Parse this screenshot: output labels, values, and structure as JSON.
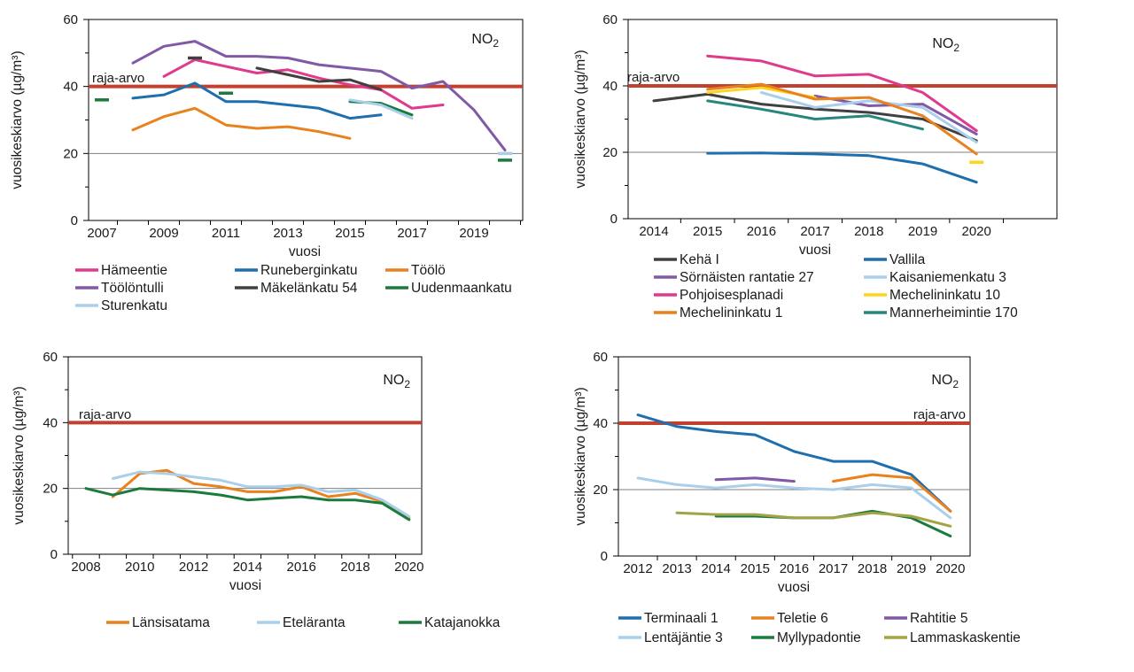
{
  "page": {
    "background": "#ffffff",
    "text_color": "#1a1a1a"
  },
  "shared": {
    "ylabel": "vuosikeskiarvo (µg/m³)",
    "xlabel": "vuosi",
    "gas_label": {
      "main": "NO",
      "sub": "2"
    },
    "limit_label": "raja-arvo",
    "limit_value": 40,
    "limit_color": "#C2402F",
    "gridline_color": "#7F7F7F",
    "axis_color": "#000000"
  },
  "chart_data": [
    {
      "position": "top-left",
      "type": "line",
      "title": "NO2 vuosikeskiarvo",
      "xlabel": "vuosi",
      "ylabel": "vuosikeskiarvo (µg/m³)",
      "ylim": [
        0,
        60
      ],
      "yticks": [
        0,
        20,
        40,
        60
      ],
      "xticks": [
        2007,
        2009,
        2011,
        2013,
        2015,
        2017,
        2019
      ],
      "gridline_at": 20,
      "limit_line": {
        "label": "raja-arvo",
        "value": 40
      },
      "legend_position": "bottom",
      "series": [
        {
          "name": "Hämeentie",
          "color": "#E03A8C",
          "points": [
            [
              2009,
              43
            ],
            [
              2010,
              48
            ],
            [
              2011,
              46
            ],
            [
              2012,
              44
            ],
            [
              2013,
              45
            ],
            [
              2014,
              42.5
            ],
            [
              2015,
              40.5
            ],
            [
              2016,
              39
            ],
            [
              2017,
              33.5
            ],
            [
              2018,
              34.5
            ]
          ]
        },
        {
          "name": "Runeberginkatu",
          "color": "#1F6FAD",
          "points": [
            [
              2008,
              36.5
            ],
            [
              2009,
              37.5
            ],
            [
              2010,
              41
            ],
            [
              2011,
              35.5
            ],
            [
              2012,
              35.5
            ],
            [
              2013,
              34.5
            ],
            [
              2014,
              33.5
            ],
            [
              2015,
              30.5
            ],
            [
              2016,
              31.5
            ]
          ]
        },
        {
          "name": "Töölö",
          "color": "#E8821E",
          "points": [
            [
              2008,
              27
            ],
            [
              2009,
              31
            ],
            [
              2010,
              33.5
            ],
            [
              2011,
              28.5
            ],
            [
              2012,
              27.5
            ],
            [
              2013,
              28
            ],
            [
              2014,
              26.5
            ],
            [
              2015,
              24.5
            ]
          ]
        },
        {
          "name": "Töölöntulli",
          "color": "#8159A6",
          "points": [
            [
              2008,
              47
            ],
            [
              2009,
              52
            ],
            [
              2010,
              53.5
            ],
            [
              2011,
              49
            ],
            [
              2012,
              49
            ],
            [
              2013,
              48.5
            ],
            [
              2014,
              46.5
            ],
            [
              2015,
              45.5
            ],
            [
              2016,
              44.5
            ],
            [
              2017,
              39.5
            ],
            [
              2018,
              41.5
            ],
            [
              2019,
              33
            ],
            [
              2020,
              21
            ]
          ]
        },
        {
          "name": "Mäkelänkatu 54",
          "color": "#404040",
          "points": [
            [
              2012,
              45.5
            ],
            [
              2013,
              43.5
            ],
            [
              2014,
              41.5
            ],
            [
              2015,
              42
            ],
            [
              2016,
              39
            ]
          ],
          "dashes": [
            [
              2010,
              48.5
            ]
          ]
        },
        {
          "name": "Uudenmaankatu",
          "color": "#1B7B3D",
          "points": [
            [
              2015,
              35.5
            ],
            [
              2016,
              35
            ],
            [
              2017,
              31.5
            ]
          ],
          "dashes": [
            [
              2007,
              36
            ],
            [
              2011,
              38
            ],
            [
              2020,
              18
            ]
          ]
        },
        {
          "name": "Sturenkatu",
          "color": "#A9CFEA",
          "points": [
            [
              2015,
              36
            ],
            [
              2016,
              34.5
            ],
            [
              2017,
              30.5
            ]
          ],
          "dashes": [
            [
              2020,
              20
            ]
          ]
        }
      ]
    },
    {
      "position": "top-right",
      "type": "line",
      "title": "NO2 vuosikeskiarvo",
      "xlabel": "vuosi",
      "ylabel": "vuosikeskiarvo (µg/m³)",
      "ylim": [
        0,
        60
      ],
      "yticks": [
        0,
        20,
        40,
        60
      ],
      "xticks": [
        2014,
        2015,
        2016,
        2017,
        2018,
        2019,
        2020
      ],
      "gridline_at": 20,
      "limit_line": {
        "label": "raja-arvo",
        "value": 40
      },
      "legend_position": "bottom",
      "series": [
        {
          "name": "Kehä I",
          "color": "#404040",
          "points": [
            [
              2014,
              35.5
            ],
            [
              2015,
              37.5
            ],
            [
              2016,
              34.5
            ],
            [
              2017,
              33
            ],
            [
              2018,
              32
            ],
            [
              2019,
              30
            ],
            [
              2020,
              23.5
            ]
          ]
        },
        {
          "name": "Vallila",
          "color": "#1F6FAD",
          "points": [
            [
              2015,
              19.7
            ],
            [
              2016,
              19.8
            ],
            [
              2017,
              19.5
            ],
            [
              2018,
              19
            ],
            [
              2019,
              16.5
            ],
            [
              2020,
              11
            ]
          ]
        },
        {
          "name": "Sörnäisten rantatie 27",
          "color": "#8159A6",
          "points": [
            [
              2017,
              37
            ],
            [
              2018,
              34
            ],
            [
              2019,
              34.5
            ],
            [
              2020,
              25.5
            ]
          ]
        },
        {
          "name": "Kaisaniemenkatu 3",
          "color": "#A9CFEA",
          "points": [
            [
              2016,
              38
            ],
            [
              2017,
              33.5
            ],
            [
              2018,
              35.5
            ],
            [
              2019,
              33.5
            ],
            [
              2020,
              23
            ]
          ]
        },
        {
          "name": "Pohjoisesplanadi",
          "color": "#E03A8C",
          "points": [
            [
              2015,
              49
            ],
            [
              2016,
              47.5
            ],
            [
              2017,
              43
            ],
            [
              2018,
              43.5
            ],
            [
              2019,
              38
            ],
            [
              2020,
              26.5
            ]
          ]
        },
        {
          "name": "Mechelininkatu 10",
          "color": "#FFD41F",
          "points": [
            [
              2015,
              38
            ],
            [
              2016,
              39.5
            ],
            [
              2017,
              36.5
            ]
          ],
          "dashes": [
            [
              2020,
              17
            ]
          ]
        },
        {
          "name": "Mechelininkatu 1",
          "color": "#E8821E",
          "points": [
            [
              2015,
              39
            ],
            [
              2016,
              40.5
            ],
            [
              2017,
              36
            ],
            [
              2018,
              36.5
            ],
            [
              2019,
              31
            ],
            [
              2020,
              19.5
            ]
          ]
        },
        {
          "name": "Mannerheimintie 170",
          "color": "#27877D",
          "points": [
            [
              2015,
              35.5
            ],
            [
              2016,
              33
            ],
            [
              2017,
              30
            ],
            [
              2018,
              31
            ],
            [
              2019,
              27
            ]
          ]
        }
      ]
    },
    {
      "position": "bottom-left",
      "type": "line",
      "title": "NO2 vuosikeskiarvo",
      "xlabel": "vuosi",
      "ylabel": "vuosikeskiarvo (µg/m³)",
      "ylim": [
        0,
        60
      ],
      "yticks": [
        0,
        20,
        40,
        60
      ],
      "xticks": [
        2008,
        2010,
        2012,
        2014,
        2016,
        2018,
        2020
      ],
      "gridline_at": 20,
      "limit_line": {
        "label": "raja-arvo",
        "value": 40
      },
      "legend_position": "bottom",
      "series": [
        {
          "name": "Länsisatama",
          "color": "#E8821E",
          "points": [
            [
              2009,
              17.5
            ],
            [
              2010,
              24.5
            ],
            [
              2011,
              25.5
            ],
            [
              2012,
              21.5
            ],
            [
              2013,
              20.5
            ],
            [
              2014,
              19
            ],
            [
              2015,
              19
            ],
            [
              2016,
              20.5
            ],
            [
              2017,
              17.5
            ],
            [
              2018,
              18.5
            ],
            [
              2019,
              16
            ],
            [
              2020,
              11
            ]
          ]
        },
        {
          "name": "Eteläranta",
          "color": "#A9CFEA",
          "points": [
            [
              2009,
              23
            ],
            [
              2010,
              25
            ],
            [
              2011,
              24.5
            ],
            [
              2012,
              23.5
            ],
            [
              2013,
              22.5
            ],
            [
              2014,
              20.5
            ],
            [
              2015,
              20.5
            ],
            [
              2016,
              21
            ],
            [
              2017,
              19
            ],
            [
              2018,
              19.5
            ],
            [
              2019,
              16.5
            ],
            [
              2020,
              11.5
            ]
          ]
        },
        {
          "name": "Katajanokka",
          "color": "#1B7B3D",
          "points": [
            [
              2008,
              20
            ],
            [
              2009,
              18
            ],
            [
              2010,
              20
            ],
            [
              2011,
              19.5
            ],
            [
              2012,
              19
            ],
            [
              2013,
              18
            ],
            [
              2014,
              16.5
            ],
            [
              2015,
              17
            ],
            [
              2016,
              17.5
            ],
            [
              2017,
              16.5
            ],
            [
              2018,
              16.5
            ],
            [
              2019,
              15.5
            ],
            [
              2020,
              10.5
            ]
          ]
        }
      ]
    },
    {
      "position": "bottom-right",
      "type": "line",
      "title": "NO2 vuosikeskiarvo",
      "xlabel": "vuosi",
      "ylabel": "vuosikeskiarvo (µg/m³)",
      "ylim": [
        0,
        60
      ],
      "yticks": [
        0,
        20,
        40,
        60
      ],
      "xticks": [
        2012,
        2013,
        2014,
        2015,
        2016,
        2017,
        2018,
        2019,
        2020
      ],
      "gridline_at": 20,
      "limit_line": {
        "label": "raja-arvo",
        "value": 40
      },
      "legend_position": "bottom",
      "series": [
        {
          "name": "Terminaali 1",
          "color": "#1F6FAD",
          "points": [
            [
              2012,
              42.5
            ],
            [
              2013,
              39
            ],
            [
              2014,
              37.5
            ],
            [
              2015,
              36.5
            ],
            [
              2016,
              31.5
            ],
            [
              2017,
              28.5
            ],
            [
              2018,
              28.5
            ],
            [
              2019,
              24.5
            ],
            [
              2020,
              13.5
            ]
          ]
        },
        {
          "name": "Teletie 6",
          "color": "#E8821E",
          "points": [
            [
              2017,
              22.5
            ],
            [
              2018,
              24.5
            ],
            [
              2019,
              23.5
            ],
            [
              2020,
              13.5
            ]
          ]
        },
        {
          "name": "Rahtitie 5",
          "color": "#8159A6",
          "points": [
            [
              2014,
              23
            ],
            [
              2015,
              23.5
            ],
            [
              2016,
              22.5
            ]
          ]
        },
        {
          "name": "Lentäjäntie 3",
          "color": "#A9CFEA",
          "points": [
            [
              2012,
              23.5
            ],
            [
              2013,
              21.5
            ],
            [
              2014,
              20.5
            ],
            [
              2015,
              21.5
            ],
            [
              2016,
              20.5
            ],
            [
              2017,
              20
            ],
            [
              2018,
              21.5
            ],
            [
              2019,
              20.5
            ],
            [
              2020,
              11.5
            ]
          ]
        },
        {
          "name": "Myllypadontie",
          "color": "#1B7B3D",
          "points": [
            [
              2014,
              12
            ],
            [
              2015,
              12
            ],
            [
              2016,
              11.5
            ],
            [
              2017,
              11.5
            ],
            [
              2018,
              13.5
            ],
            [
              2019,
              11.5
            ],
            [
              2020,
              6
            ]
          ]
        },
        {
          "name": "Lammaskaskentie",
          "color": "#A2A347",
          "points": [
            [
              2013,
              13
            ],
            [
              2014,
              12.5
            ],
            [
              2015,
              12.5
            ],
            [
              2016,
              11.5
            ],
            [
              2017,
              11.5
            ],
            [
              2018,
              13
            ],
            [
              2019,
              12
            ],
            [
              2020,
              9
            ]
          ]
        }
      ]
    }
  ]
}
